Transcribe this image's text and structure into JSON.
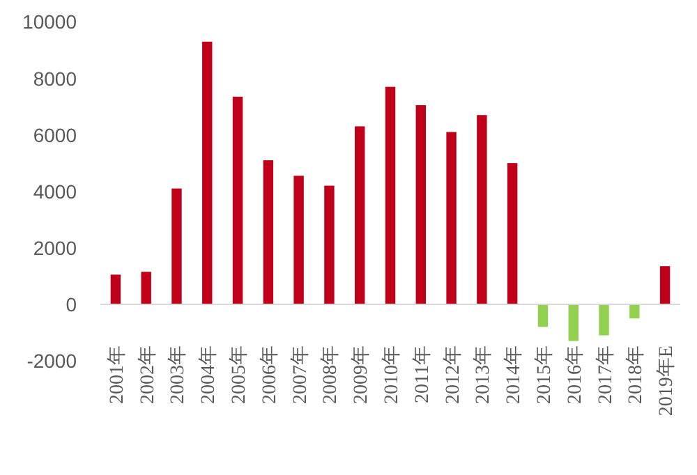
{
  "chart_data": {
    "type": "bar",
    "categories": [
      "2001年",
      "2002年",
      "2003年",
      "2004年",
      "2005年",
      "2006年",
      "2007年",
      "2008年",
      "2009年",
      "2010年",
      "2011年",
      "2012年",
      "2013年",
      "2014年",
      "2015年",
      "2016年",
      "2017年",
      "2018年",
      "2019年E"
    ],
    "values": [
      1050,
      1150,
      4100,
      9300,
      7350,
      5100,
      4550,
      4200,
      6300,
      7700,
      7050,
      6100,
      6700,
      5000,
      -800,
      -1300,
      -1100,
      -500,
      1350
    ],
    "colors": [
      "#c00018",
      "#c00018",
      "#c00018",
      "#c00018",
      "#c00018",
      "#c00018",
      "#c00018",
      "#c00018",
      "#c00018",
      "#c00018",
      "#c00018",
      "#c00018",
      "#c00018",
      "#c00018",
      "#92d050",
      "#92d050",
      "#92d050",
      "#92d050",
      "#c00018"
    ],
    "ylim": [
      -2000,
      10000
    ],
    "yticks": [
      -2000,
      0,
      2000,
      4000,
      6000,
      8000,
      10000
    ]
  }
}
